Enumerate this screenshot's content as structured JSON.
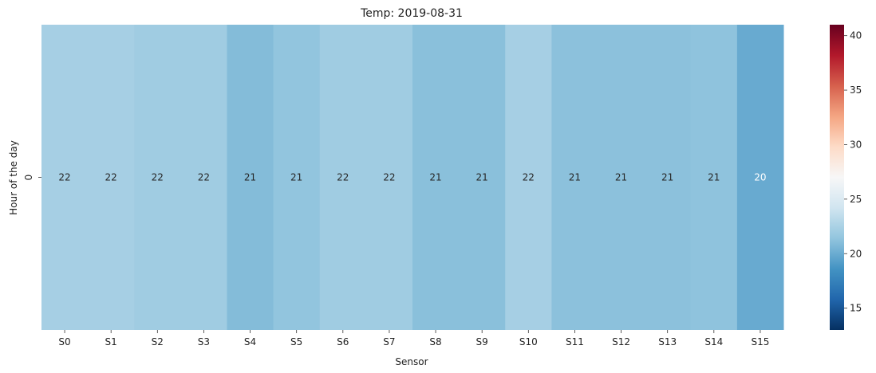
{
  "chart_data": {
    "type": "heatmap",
    "title": "Temp: 2019-08-31",
    "xlabel": "Sensor",
    "ylabel": "Hour of the day",
    "x_categories": [
      "S0",
      "S1",
      "S2",
      "S3",
      "S4",
      "S5",
      "S6",
      "S7",
      "S8",
      "S9",
      "S10",
      "S11",
      "S12",
      "S13",
      "S14",
      "S15"
    ],
    "y_categories": [
      "0"
    ],
    "values": [
      [
        22.3,
        22.3,
        22.0,
        22.0,
        20.9,
        21.4,
        22.0,
        22.0,
        21.1,
        21.1,
        22.3,
        21.2,
        21.2,
        21.2,
        21.3,
        19.9
      ]
    ],
    "value_labels": [
      [
        "22",
        "22",
        "22",
        "22",
        "21",
        "21",
        "22",
        "22",
        "21",
        "21",
        "22",
        "21",
        "21",
        "21",
        "21",
        "20"
      ]
    ],
    "colormap": "RdBu_r",
    "color_range": [
      13,
      41
    ],
    "colorbar_ticks": [
      15,
      20,
      25,
      30,
      35,
      40
    ],
    "colorbar_tick_labels": [
      "15",
      "20",
      "25",
      "30",
      "35",
      "40"
    ],
    "colorbar_position": "right"
  }
}
